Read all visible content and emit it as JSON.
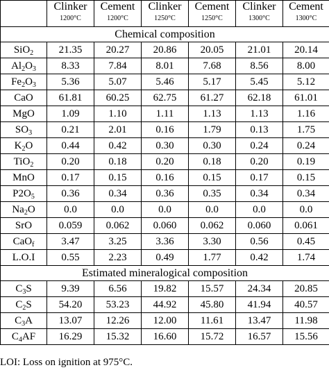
{
  "header": {
    "columns": [
      {
        "name": "Clinker",
        "temp": "1200°C"
      },
      {
        "name": "Cement",
        "temp": "1200°C"
      },
      {
        "name": "Clinker",
        "temp": "1250°C"
      },
      {
        "name": "Cement",
        "temp": "1250°C"
      },
      {
        "name": "Clinker",
        "temp": "1300°C"
      },
      {
        "name": "Cement",
        "temp": "1300°C"
      }
    ]
  },
  "chemical": {
    "title": "Chemical composition",
    "rows": [
      {
        "base": "SiO",
        "sub": "2",
        "tail": "",
        "values": [
          "21.35",
          "20.27",
          "20.86",
          "20.05",
          "21.01",
          "20.14"
        ]
      },
      {
        "base": "Al",
        "sub": "2",
        "tail": "O",
        "sub2": "3",
        "values": [
          "8.33",
          "7.84",
          "8.01",
          "7.68",
          "8.56",
          "8.00"
        ]
      },
      {
        "base": "Fe",
        "sub": "2",
        "tail": "O",
        "sub2": "3",
        "values": [
          "5.36",
          "5.07",
          "5.46",
          "5.17",
          "5.45",
          "5.12"
        ]
      },
      {
        "base": "CaO",
        "sub": "",
        "tail": "",
        "values": [
          "61.81",
          "60.25",
          "62.75",
          "61.27",
          "62.18",
          "61.01"
        ]
      },
      {
        "base": "MgO",
        "sub": "",
        "tail": "",
        "values": [
          "1.09",
          "1.10",
          "1.11",
          "1.13",
          "1.13",
          "1.16"
        ]
      },
      {
        "base": "SO",
        "sub": "3",
        "tail": "",
        "values": [
          "0.21",
          "2.01",
          "0.16",
          "1.79",
          "0.13",
          "1.75"
        ]
      },
      {
        "base": "K",
        "sub": "2",
        "tail": "O",
        "values": [
          "0.44",
          "0.42",
          "0.30",
          "0.30",
          "0.24",
          "0.24"
        ]
      },
      {
        "base": "TiO",
        "sub": "2",
        "tail": "",
        "values": [
          "0.20",
          "0.18",
          "0.20",
          "0.18",
          "0.20",
          "0.19"
        ]
      },
      {
        "base": "MnO",
        "sub": "",
        "tail": "",
        "values": [
          "0.17",
          "0.15",
          "0.16",
          "0.15",
          "0.17",
          "0.15"
        ]
      },
      {
        "base": "P2O",
        "sub": "5",
        "tail": "",
        "values": [
          "0.36",
          "0.34",
          "0.36",
          "0.35",
          "0.34",
          "0.34"
        ]
      },
      {
        "base": "Na",
        "sub": "2",
        "tail": "O",
        "values": [
          "0.0",
          "0.0",
          "0.0",
          "0.0",
          "0.0",
          "0.0"
        ]
      },
      {
        "base": "SrO",
        "sub": "",
        "tail": "",
        "values": [
          "0.059",
          "0.062",
          "0.060",
          "0.062",
          "0.060",
          "0.061"
        ]
      },
      {
        "base": "CaO",
        "sub": "f",
        "tail": "",
        "values": [
          "3.47",
          "3.25",
          "3.36",
          "3.30",
          "0.56",
          "0.45"
        ]
      },
      {
        "base": "L.O.I",
        "sub": "",
        "tail": "",
        "values": [
          "0.55",
          "2.23",
          "0.49",
          "1.77",
          "0.42",
          "1.74"
        ]
      }
    ]
  },
  "mineralogical": {
    "title": "Estimated mineralogical composition",
    "rows": [
      {
        "base": "C",
        "sub": "3",
        "tail": "S",
        "values": [
          "9.39",
          "6.56",
          "19.82",
          "15.57",
          "24.34",
          "20.85"
        ]
      },
      {
        "base": "C",
        "sub": "2",
        "tail": "S",
        "values": [
          "54.20",
          "53.23",
          "44.92",
          "45.80",
          "41.94",
          "40.57"
        ]
      },
      {
        "base": "C",
        "sub": "3",
        "tail": "A",
        "values": [
          "13.07",
          "12.26",
          "12.00",
          "11.61",
          "13.47",
          "11.98"
        ]
      },
      {
        "base": "C",
        "sub": "4",
        "tail": "AF",
        "values": [
          "16.29",
          "15.32",
          "16.60",
          "15.72",
          "16.57",
          "15.56"
        ]
      }
    ]
  },
  "note": "LOI: Loss on ignition at 975°C."
}
